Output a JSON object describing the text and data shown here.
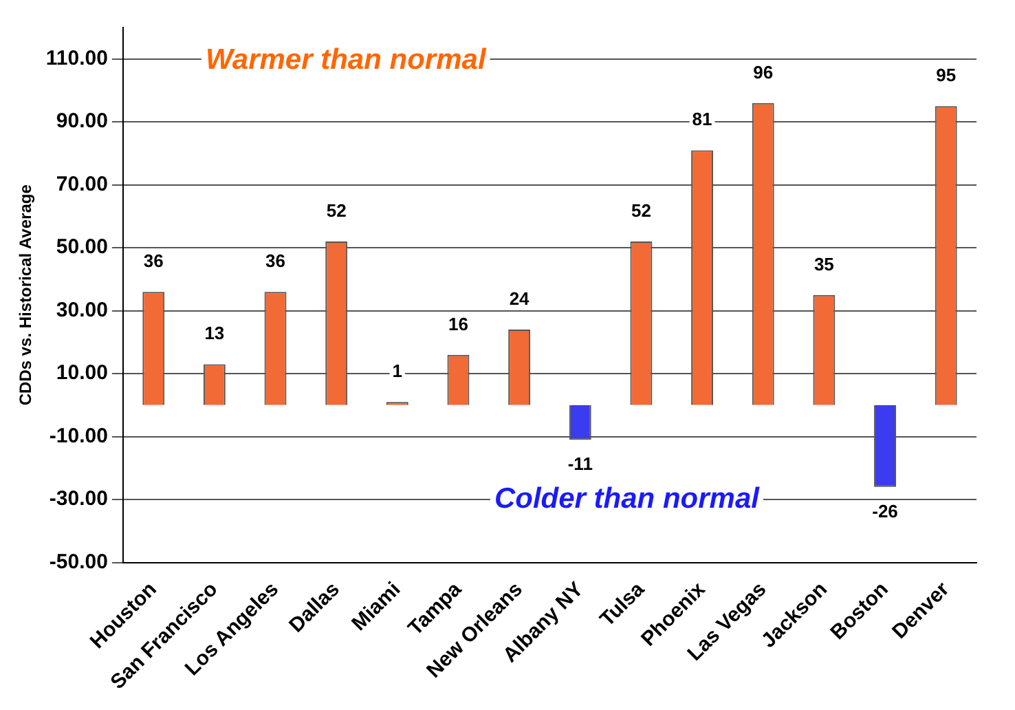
{
  "chart_data": {
    "type": "bar",
    "ylabel": "CDDs vs. Historical Average",
    "categories": [
      "Houston",
      "San Francisco",
      "Los Angeles",
      "Dallas",
      "Miami",
      "Tampa",
      "New Orleans",
      "Albany NY",
      "Tulsa",
      "Phoenix",
      "Las Vegas",
      "Jackson",
      "Boston",
      "Denver"
    ],
    "values": [
      36,
      13,
      36,
      52,
      1,
      16,
      24,
      -11,
      52,
      81,
      96,
      35,
      -26,
      95
    ],
    "colors": [
      "#f26a35",
      "#f26a35",
      "#f26a35",
      "#f26a35",
      "#f26a35",
      "#f26a35",
      "#f26a35",
      "#3b3bf0",
      "#f26a35",
      "#f26a35",
      "#f26a35",
      "#f26a35",
      "#3b3bf0",
      "#f26a35"
    ],
    "data_labels": true,
    "ylim": [
      -50,
      120
    ],
    "yticks": [
      {
        "value": -50,
        "label": "-50.00"
      },
      {
        "value": -30,
        "label": "-30.00"
      },
      {
        "value": -10,
        "label": "-10.00"
      },
      {
        "value": 10,
        "label": "10.00"
      },
      {
        "value": 30,
        "label": "30.00"
      },
      {
        "value": 50,
        "label": "50.00"
      },
      {
        "value": 70,
        "label": "70.00"
      },
      {
        "value": 90,
        "label": "90.00"
      },
      {
        "value": 110,
        "label": "110.00"
      }
    ],
    "grid": "y",
    "legend": false,
    "annotations": [
      "Warmer than normal",
      "Colder than normal"
    ]
  }
}
